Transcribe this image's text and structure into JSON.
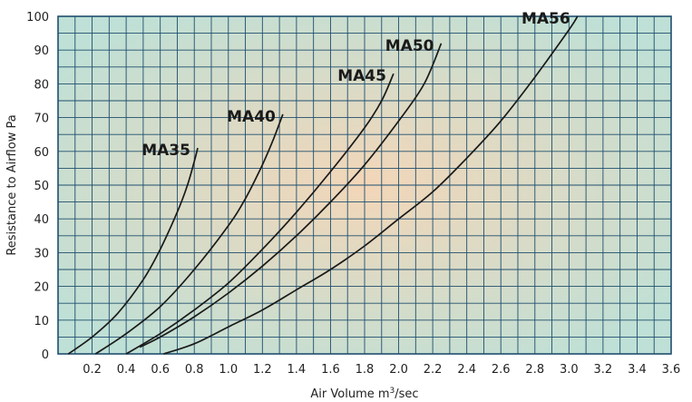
{
  "chart_data": {
    "type": "line",
    "xlabel": "Air Volume m",
    "xlabel_sup": "3",
    "xlabel_suffix": "/sec",
    "ylabel": "Resistance to Airflow Pa",
    "xlim": [
      0,
      3.6
    ],
    "ylim": [
      0,
      100
    ],
    "x_ticks": [
      "0.2",
      "0.4",
      "0.6",
      "0.8",
      "1.0",
      "1.2",
      "1.4",
      "1.6",
      "1.8",
      "2.0",
      "2.2",
      "2.4",
      "2.6",
      "2.8",
      "3.0",
      "3.2",
      "3.4",
      "3.6"
    ],
    "y_ticks": [
      "0",
      "10",
      "20",
      "30",
      "40",
      "50",
      "60",
      "70",
      "80",
      "90",
      "100"
    ],
    "x_minor_step": 0.1,
    "y_minor_step": 5,
    "grid": true,
    "colors": {
      "grid": "#1f4f6e",
      "background_center": "#f3d6b8",
      "background_edge": "#bfe0d6",
      "curve": "#1a1a1a"
    },
    "series": [
      {
        "name": "MA35",
        "x": [
          0.06,
          0.2,
          0.35,
          0.5,
          0.6,
          0.7,
          0.76,
          0.8,
          0.82
        ],
        "y": [
          0,
          5,
          12,
          22,
          31,
          42,
          50,
          57,
          61
        ]
      },
      {
        "name": "MA40",
        "x": [
          0.22,
          0.4,
          0.6,
          0.8,
          1.0,
          1.1,
          1.2,
          1.26,
          1.32
        ],
        "y": [
          0,
          6,
          14,
          25,
          38,
          46,
          56,
          63,
          71
        ]
      },
      {
        "name": "MA45",
        "x": [
          0.4,
          0.6,
          0.8,
          1.0,
          1.2,
          1.4,
          1.6,
          1.8,
          1.9,
          1.97
        ],
        "y": [
          0,
          6,
          13,
          21,
          31,
          42,
          54,
          67,
          75,
          83
        ]
      },
      {
        "name": "MA50",
        "x": [
          0.48,
          0.6,
          0.8,
          1.0,
          1.2,
          1.4,
          1.6,
          1.8,
          2.0,
          2.15,
          2.25
        ],
        "y": [
          2,
          5,
          11,
          18,
          26,
          35,
          45,
          56,
          69,
          80,
          92
        ]
      },
      {
        "name": "MA56",
        "x": [
          0.62,
          0.8,
          1.0,
          1.2,
          1.4,
          1.6,
          1.8,
          2.0,
          2.2,
          2.4,
          2.6,
          2.8,
          3.0,
          3.05
        ],
        "y": [
          0,
          3,
          8,
          13,
          19,
          25,
          32,
          40,
          48,
          58,
          69,
          82,
          96,
          100
        ]
      }
    ]
  }
}
